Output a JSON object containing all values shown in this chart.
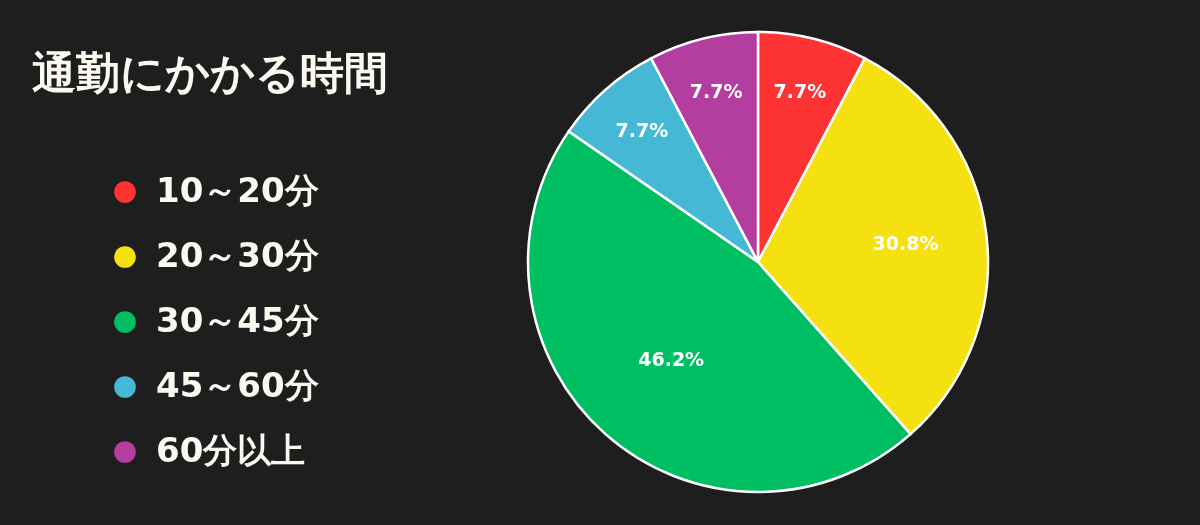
{
  "chart_data": {
    "type": "pie",
    "title": "通勤にかかる時間",
    "categories": [
      "10～20分",
      "20～30分",
      "30～45分",
      "45～60分",
      "60分以上"
    ],
    "values": [
      7.7,
      30.8,
      46.2,
      7.7,
      7.7
    ],
    "colors": [
      "#fe3333",
      "#f5e10f",
      "#00bf63",
      "#44b8d4",
      "#b43da0"
    ],
    "value_labels": [
      "7.7%",
      "30.8%",
      "46.2%",
      "7.7%",
      "7.7%"
    ],
    "legend": "left"
  }
}
